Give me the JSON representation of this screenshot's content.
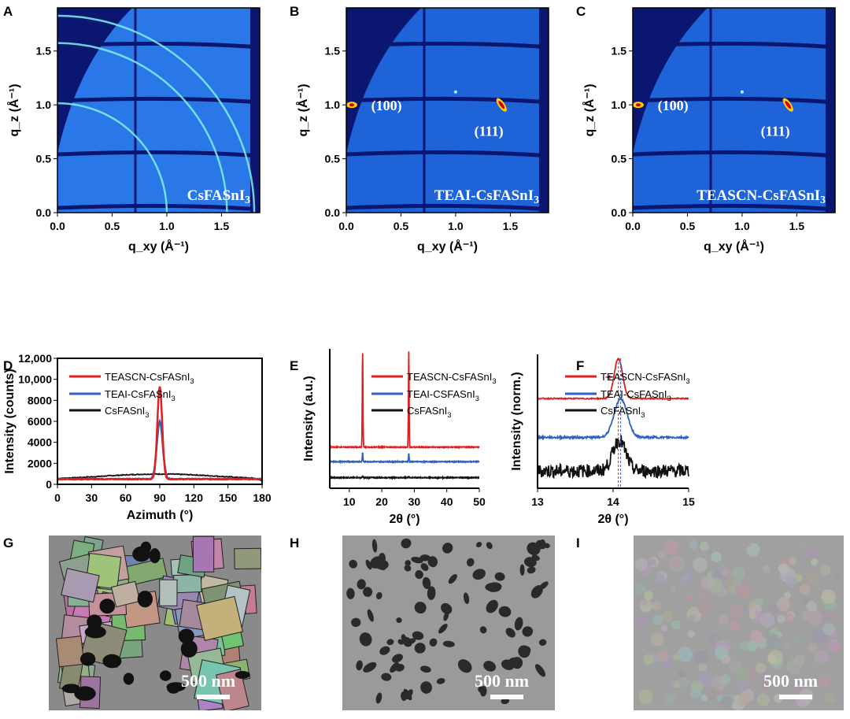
{
  "panel_labels": [
    "A",
    "B",
    "C",
    "D",
    "E",
    "F",
    "G",
    "H",
    "I"
  ],
  "giwaxs": {
    "xlabel": "q_xy (Å⁻¹)",
    "ylabel": "q_z (Å⁻¹)",
    "xticks": [
      "0.0",
      "0.5",
      "1.0",
      "1.5"
    ],
    "yticks": [
      "0.0",
      "0.5",
      "1.0",
      "1.5"
    ],
    "xlim": [
      0,
      1.85
    ],
    "ylim": [
      0,
      1.9
    ],
    "panels": [
      {
        "sample": "CsFASnI",
        "sub": "3",
        "pattern": "rings",
        "peaks": []
      },
      {
        "sample": "TEAI-CsFASnI",
        "sub": "3",
        "pattern": "spots",
        "peaks": [
          "(100)",
          "(111)"
        ]
      },
      {
        "sample": "TEASCN-CsFASnI",
        "sub": "3",
        "pattern": "spots",
        "peaks": [
          "(100)",
          "(111)"
        ]
      }
    ]
  },
  "chart_data": [
    {
      "panel": "D",
      "type": "line",
      "xlabel": "Azimuth (°)",
      "ylabel": "Intensity (counts)",
      "xlim": [
        0,
        180
      ],
      "ylim": [
        0,
        12000
      ],
      "xticks": [
        "0",
        "30",
        "60",
        "90",
        "120",
        "150",
        "180"
      ],
      "yticks": [
        "0",
        "2000",
        "4000",
        "6000",
        "8000",
        "10,000",
        "12,000"
      ],
      "legend": "top-left",
      "series": [
        {
          "name": "TEASCN-CsFASnI",
          "sub": "3",
          "color": "#e02020",
          "baseline": 500,
          "peak_center": 90,
          "peak_height": 9300,
          "peak_fwhm": 5
        },
        {
          "name": "TEAI-CsFASnI",
          "sub": "3",
          "color": "#3060c0",
          "baseline": 500,
          "peak_center": 90,
          "peak_height": 6000,
          "peak_fwhm": 6
        },
        {
          "name": "CsFASnI",
          "sub": "3",
          "color": "#111111",
          "baseline": 450,
          "peak_center": 90,
          "peak_height": 980,
          "peak_fwhm": 120
        }
      ]
    },
    {
      "panel": "E",
      "type": "line",
      "xlabel": "2θ (°)",
      "ylabel": "Intensity (a.u.)",
      "xlim": [
        4,
        50
      ],
      "ylim": [
        0,
        1.05
      ],
      "xticks": [
        "10",
        "20",
        "30",
        "40",
        "50"
      ],
      "legend": "top-right",
      "series": [
        {
          "name": "TEASCN-CsFASnI",
          "sub": "3",
          "color": "#e02020",
          "baseline": 0.31,
          "peaks": [
            [
              14.1,
              1.03
            ],
            [
              28.3,
              1.03
            ]
          ]
        },
        {
          "name": "TEAI-CSFASnI",
          "sub": "3",
          "color": "#3060c0",
          "baseline": 0.2,
          "peaks": [
            [
              14.1,
              0.27
            ],
            [
              28.3,
              0.26
            ]
          ]
        },
        {
          "name": "CsFASnI",
          "sub": "3",
          "color": "#111111",
          "baseline": 0.08,
          "peaks": [
            [
              14.1,
              0.09
            ],
            [
              28.3,
              0.09
            ]
          ]
        }
      ]
    },
    {
      "panel": "F",
      "type": "line",
      "xlabel": "2θ (°)",
      "ylabel": "Intensity (norm.)",
      "xlim": [
        13,
        15
      ],
      "ylim": [
        0,
        1
      ],
      "xticks": [
        "13",
        "14",
        "15"
      ],
      "legend": "top-right",
      "reference_lines": [
        {
          "x": 14.07,
          "color": "#e02020"
        },
        {
          "x": 14.1,
          "color": "#3060c0"
        }
      ],
      "annotation": "shift-left arrow",
      "series": [
        {
          "name": "TEASCN-CsFASnI",
          "sub": "3",
          "color": "#e02020",
          "baseline": 0.67,
          "peak_center": 14.07,
          "peak_height": 0.97,
          "peak_fwhm": 0.13
        },
        {
          "name": "TEAI-CsFASnI",
          "sub": "3",
          "color": "#3060c0",
          "baseline": 0.38,
          "peak_center": 14.1,
          "peak_height": 0.67,
          "peak_fwhm": 0.2
        },
        {
          "name": "CsFASnI",
          "sub": "3",
          "color": "#111111",
          "baseline": 0.13,
          "peak_center": 14.08,
          "peak_height": 0.36,
          "peak_fwhm": 0.2
        }
      ]
    }
  ],
  "sem": {
    "scale_bar": "500 nm",
    "panels": [
      {
        "morphology": "large grains with voids"
      },
      {
        "morphology": "porous"
      },
      {
        "morphology": "compact"
      }
    ]
  }
}
